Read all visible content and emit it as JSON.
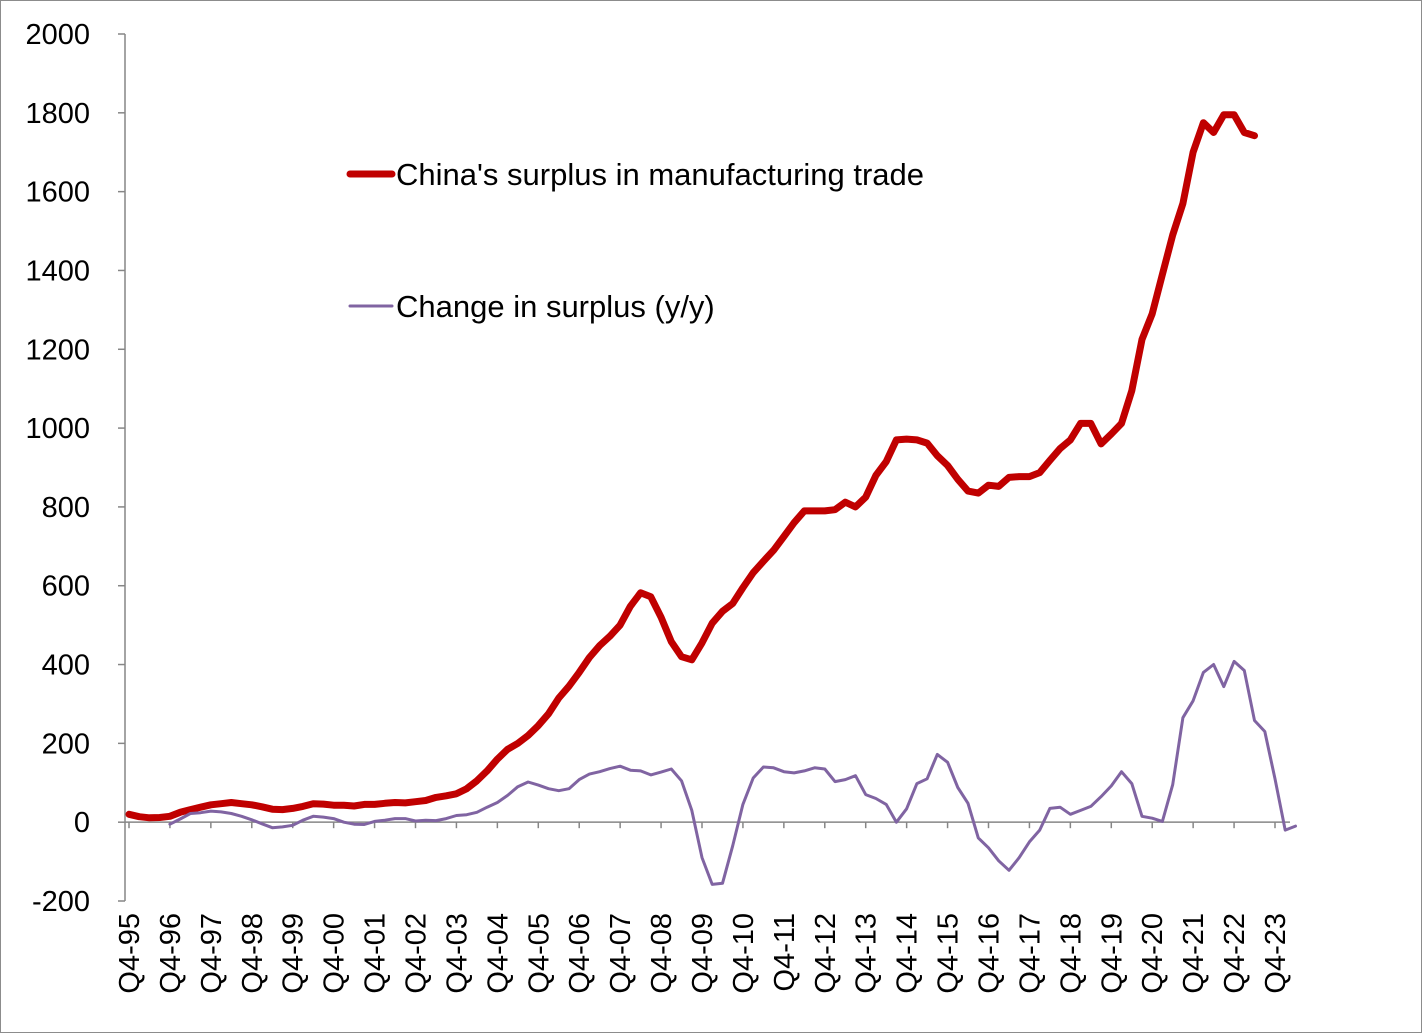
{
  "chart_data": {
    "type": "line",
    "title": "",
    "xlabel": "",
    "ylabel": "",
    "ylim": [
      -200,
      2000
    ],
    "yticks": [
      2000,
      1800,
      1600,
      1400,
      1200,
      1000,
      800,
      600,
      400,
      200,
      0,
      -200
    ],
    "x_tick_labels": [
      "Q4-95",
      "Q4-96",
      "Q4-97",
      "Q4-98",
      "Q4-99",
      "Q4-00",
      "Q4-01",
      "Q4-02",
      "Q4-03",
      "Q4-04",
      "Q4-05",
      "Q4-06",
      "Q4-07",
      "Q4-08",
      "Q4-09",
      "Q4-10",
      "Q4-11",
      "Q4-12",
      "Q4-13",
      "Q4-14",
      "Q4-15",
      "Q4-16",
      "Q4-17",
      "Q4-18",
      "Q4-19",
      "Q4-20",
      "Q4-21",
      "Q4-22",
      "Q4-23"
    ],
    "grid": false,
    "legend_position": "upper-left inside plot",
    "series": [
      {
        "name": "China's surplus in manufacturing trade",
        "color": "#c00000",
        "values": [
          20,
          14,
          11,
          12,
          15,
          25,
          32,
          38,
          44,
          47,
          50,
          47,
          44,
          39,
          33,
          32,
          35,
          40,
          47,
          46,
          43,
          43,
          41,
          45,
          45,
          48,
          50,
          49,
          52,
          55,
          63,
          67,
          72,
          85,
          105,
          130,
          160,
          185,
          200,
          220,
          245,
          275,
          315,
          345,
          380,
          418,
          448,
          472,
          500,
          548,
          582,
          572,
          520,
          458,
          420,
          412,
          455,
          505,
          535,
          555,
          595,
          633,
          662,
          690,
          725,
          760,
          790,
          790,
          790,
          793,
          812,
          800,
          825,
          880,
          915,
          970,
          972,
          970,
          962,
          930,
          905,
          870,
          840,
          835,
          855,
          852,
          875,
          877,
          877,
          887,
          918,
          948,
          970,
          1012,
          1012,
          960,
          985,
          1012,
          1095,
          1225,
          1290,
          1390,
          1490,
          1570,
          1700,
          1775,
          1750,
          1795,
          1795,
          1750,
          1742
        ],
        "start_index": 0
      },
      {
        "name": "Change in surplus (y/y)",
        "color": "#8064a2",
        "values": [
          -5,
          8,
          22,
          24,
          28,
          26,
          22,
          15,
          6,
          -4,
          -14,
          -12,
          -8,
          5,
          15,
          13,
          9,
          0,
          -5,
          -6,
          2,
          5,
          9,
          9,
          3,
          5,
          4,
          9,
          17,
          19,
          25,
          38,
          50,
          68,
          90,
          102,
          94,
          85,
          80,
          85,
          108,
          122,
          128,
          136,
          142,
          132,
          130,
          120,
          127,
          135,
          105,
          30,
          -90,
          -158,
          -155,
          -60,
          45,
          112,
          140,
          138,
          128,
          125,
          130,
          138,
          135,
          103,
          108,
          118,
          70,
          60,
          45,
          0,
          34,
          98,
          110,
          172,
          152,
          88,
          48,
          -40,
          -65,
          -98,
          -122,
          -90,
          -50,
          -20,
          35,
          38,
          20,
          30,
          40,
          65,
          92,
          128,
          98,
          15,
          10,
          2,
          95,
          265,
          308,
          380,
          400,
          344,
          408,
          385,
          258,
          230,
          110,
          -20,
          -10
        ],
        "start_index": 4
      }
    ]
  }
}
